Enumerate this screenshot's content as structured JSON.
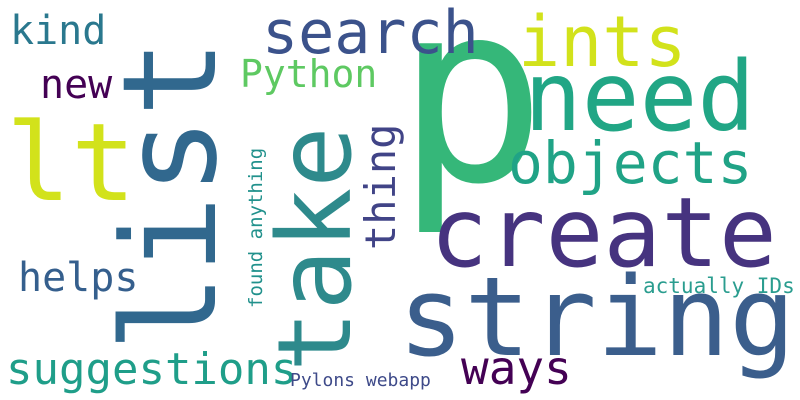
{
  "canvas": {
    "background": "#ffffff"
  },
  "words": [
    {
      "id": "p",
      "text": "p",
      "color": "#35b779"
    },
    {
      "id": "list",
      "text": "list",
      "color": "#31688e"
    },
    {
      "id": "take",
      "text": "take",
      "color": "#2e8a8c"
    },
    {
      "id": "string",
      "text": "string",
      "color": "#3b5e8c"
    },
    {
      "id": "create",
      "text": "create",
      "color": "#46337f"
    },
    {
      "id": "need",
      "text": "need",
      "color": "#21a685"
    },
    {
      "id": "lt",
      "text": "lt",
      "color": "#d2e21b"
    },
    {
      "id": "ints",
      "text": "ints",
      "color": "#d2e21b"
    },
    {
      "id": "search",
      "text": "search",
      "color": "#3b528b"
    },
    {
      "id": "objects",
      "text": "objects",
      "color": "#20a386"
    },
    {
      "id": "kind",
      "text": "kind",
      "color": "#2a788e"
    },
    {
      "id": "new",
      "text": "new",
      "color": "#440154"
    },
    {
      "id": "python",
      "text": "Python",
      "color": "#5ec962"
    },
    {
      "id": "thing",
      "text": "thing",
      "color": "#414487"
    },
    {
      "id": "helps",
      "text": "helps",
      "color": "#355f8d"
    },
    {
      "id": "suggestions",
      "text": "suggestions",
      "color": "#1f9e89"
    },
    {
      "id": "ways",
      "text": "ways",
      "color": "#440154"
    },
    {
      "id": "found-anything",
      "text": "found anything",
      "color": "#21918c"
    },
    {
      "id": "actually-ids",
      "text": "actually IDs",
      "color": "#2a9d8f"
    },
    {
      "id": "pylons-webapp",
      "text": "Pylons webapp",
      "color": "#3e4a89"
    }
  ]
}
